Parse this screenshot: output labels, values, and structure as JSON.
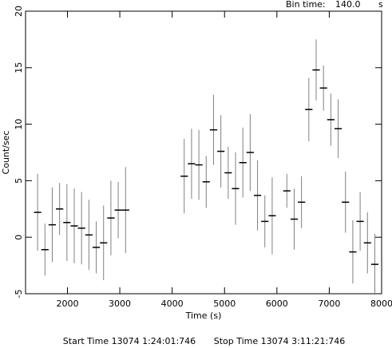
{
  "chart_data": {
    "type": "errorbar",
    "bin_time": {
      "label": "Bin time:",
      "value": {
        "value": 140,
        "label": "140.0"
      },
      "unit": "s"
    },
    "xlabel": "Time (s)",
    "ylabel": "Count/sec",
    "footer": [
      "Start Time 13074  1:24:01:746",
      "Stop Time 13074  3:11:21:746"
    ],
    "xlim": [
      1200,
      8000
    ],
    "ylim": [
      -5,
      20
    ],
    "xticks": [
      2000,
      3000,
      4000,
      5000,
      6000,
      7000,
      8000
    ],
    "yticks": [
      -5,
      0,
      5,
      10,
      15,
      20
    ],
    "color": "#000000",
    "error_color": "#808080",
    "x": [
      1430,
      1570,
      1710,
      1850,
      1990,
      2130,
      2270,
      2410,
      2550,
      2690,
      2830,
      2970,
      3110,
      4230,
      4370,
      4510,
      4650,
      4790,
      4930,
      5070,
      5210,
      5350,
      5490,
      5630,
      5770,
      5910,
      6190,
      6330,
      6470,
      6610,
      6750,
      6890,
      7030,
      7170,
      7310,
      7450,
      7590,
      7730,
      7870
    ],
    "values": [
      2.2,
      -1.1,
      1.1,
      2.5,
      1.3,
      1.0,
      0.8,
      0.2,
      -0.9,
      -0.5,
      1.7,
      2.4,
      2.4,
      5.4,
      6.5,
      6.4,
      4.9,
      9.5,
      7.6,
      5.7,
      4.3,
      6.6,
      7.5,
      3.7,
      1.4,
      1.9,
      4.1,
      1.6,
      3.1,
      11.3,
      14.8,
      13.2,
      10.4,
      9.6,
      3.1,
      -1.3,
      1.4,
      -0.5,
      -2.4
    ],
    "errors": [
      3.4,
      2.3,
      3.3,
      2.3,
      3.4,
      3.3,
      3.2,
      3.1,
      2.3,
      3.3,
      3.3,
      2.5,
      3.8,
      3.3,
      3.1,
      3.1,
      2.3,
      3.1,
      3.2,
      2.3,
      3.2,
      3.1,
      3.4,
      3.1,
      2.3,
      3.4,
      1.5,
      2.7,
      2.3,
      2.8,
      2.7,
      2.0,
      2.3,
      2.6,
      2.7,
      2.8,
      2.6,
      2.7,
      2.7
    ]
  }
}
